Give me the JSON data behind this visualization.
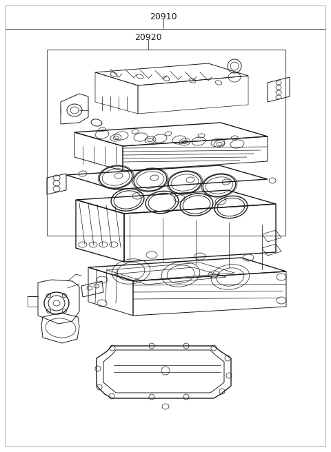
{
  "label_20910": "20910",
  "label_20920": "20920",
  "bg_color": "#ffffff",
  "line_color": "#1a1a1a",
  "fig_width": 4.8,
  "fig_height": 6.56,
  "dpi": 100
}
